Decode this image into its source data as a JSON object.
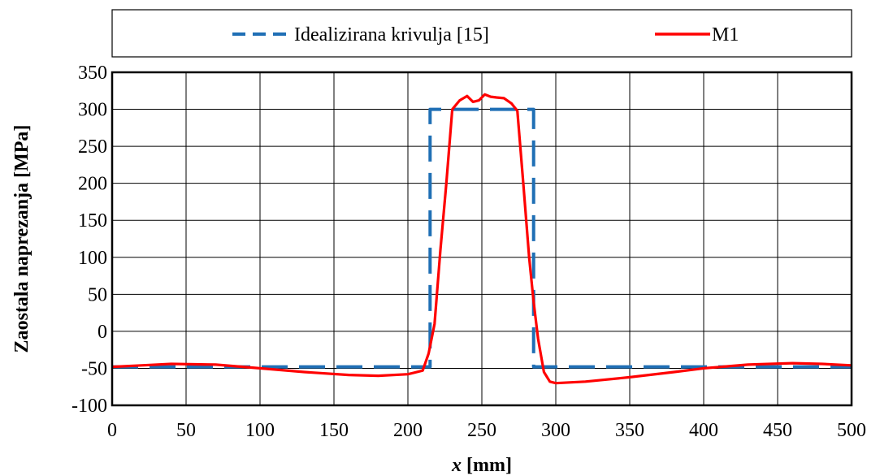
{
  "chart_data": {
    "type": "line",
    "title": "",
    "xlabel_var": "x",
    "xlabel_unit": " [mm]",
    "ylabel": "Zaostala naprezanja [MPa]",
    "xlim": [
      0,
      500
    ],
    "ylim": [
      -100,
      350
    ],
    "xticks": [
      0,
      50,
      100,
      150,
      200,
      250,
      300,
      350,
      400,
      450,
      500
    ],
    "yticks": [
      -100,
      -50,
      0,
      50,
      100,
      150,
      200,
      250,
      300,
      350
    ],
    "grid": true,
    "legend_position": "top",
    "series": [
      {
        "name": "Idealizirana krivulja [15]",
        "color": "#1f6fb5",
        "style": "dashed",
        "x": [
          0,
          215,
          215,
          285,
          285,
          500
        ],
        "y": [
          -48,
          -48,
          300,
          300,
          -48,
          -48
        ]
      },
      {
        "name": "M1",
        "color": "#ff0000",
        "style": "solid",
        "x": [
          0,
          20,
          40,
          70,
          100,
          130,
          160,
          180,
          200,
          210,
          214,
          218,
          222,
          226,
          230,
          235,
          240,
          244,
          248,
          252,
          256,
          260,
          265,
          270,
          274,
          278,
          282,
          285,
          288,
          292,
          296,
          300,
          320,
          350,
          380,
          400,
          430,
          460,
          480,
          500
        ],
        "y": [
          -48,
          -46,
          -44,
          -45,
          -50,
          -55,
          -59,
          -60,
          -58,
          -53,
          -30,
          10,
          110,
          200,
          300,
          312,
          318,
          310,
          312,
          320,
          317,
          316,
          315,
          308,
          298,
          200,
          100,
          40,
          -10,
          -55,
          -68,
          -70,
          -68,
          -62,
          -55,
          -50,
          -45,
          -43,
          -44,
          -46
        ]
      }
    ]
  }
}
